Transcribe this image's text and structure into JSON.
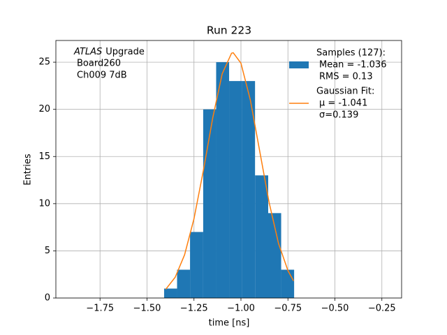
{
  "chart_data": {
    "type": "histogram",
    "title": "Run 223",
    "xlabel": "time [ns]",
    "ylabel": "Entries",
    "annotation": {
      "emphasis": "ATLAS",
      "lines": [
        "Upgrade",
        "Board260",
        "Ch009 7dB"
      ]
    },
    "bins": [
      -1.409,
      -1.34,
      -1.271,
      -1.201,
      -1.132,
      -1.063,
      -0.994,
      -0.925,
      -0.855,
      -0.786,
      -0.717
    ],
    "series": [
      {
        "name": [
          "Samples (127):",
          "Mean = -1.036",
          "RMS = 0.13"
        ],
        "color": "#1f77b4",
        "values": [
          1,
          3,
          7,
          20,
          25,
          23,
          23,
          13,
          9,
          3
        ]
      },
      {
        "name": [
          "Gaussian Fit:",
          "μ = -1.041",
          "σ=0.139"
        ],
        "color": "#ff7f0e",
        "type": "line",
        "x": [
          -1.4,
          -1.35,
          -1.3,
          -1.25,
          -1.2,
          -1.15,
          -1.1,
          -1.05,
          -1.041,
          -1.0,
          -0.95,
          -0.9,
          -0.85,
          -0.8,
          -0.75,
          -0.72
        ],
        "values": [
          0.93,
          2.2,
          4.58,
          8.4,
          13.52,
          19.11,
          23.76,
          25.95,
          26.0,
          24.89,
          20.99,
          15.55,
          10.12,
          5.78,
          2.91,
          1.81
        ]
      }
    ],
    "xlim": [
      -1.985,
      -0.145
    ],
    "ylim": [
      0,
      27.3
    ],
    "xticks": [
      {
        "value": -1.75,
        "label": "−1.75"
      },
      {
        "value": -1.5,
        "label": "−1.50"
      },
      {
        "value": -1.25,
        "label": "−1.25"
      },
      {
        "value": -1.0,
        "label": "−1.00"
      },
      {
        "value": -0.75,
        "label": "−0.75"
      },
      {
        "value": -0.5,
        "label": "−0.50"
      },
      {
        "value": -0.25,
        "label": "−0.25"
      }
    ],
    "yticks": [
      0,
      5,
      10,
      15,
      20,
      25
    ],
    "grid": true,
    "legend": "upper right"
  }
}
